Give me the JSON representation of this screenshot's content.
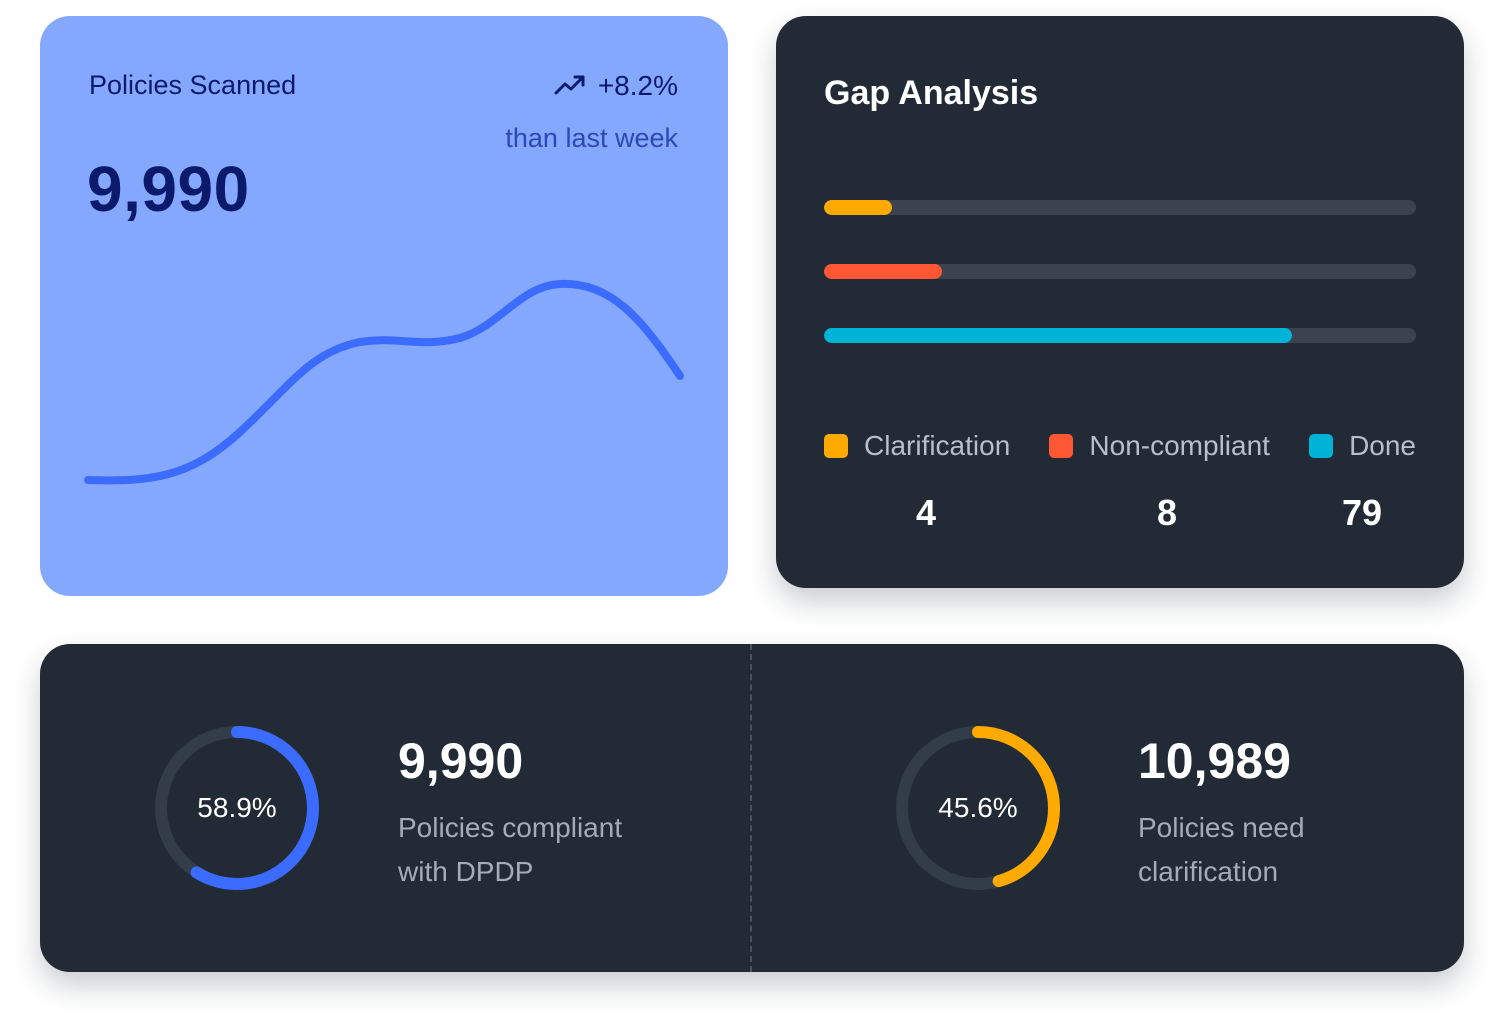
{
  "scanned": {
    "title": "Policies Scanned",
    "value": "9,990",
    "trend_value": "+8.2%",
    "trend_label": "than last week",
    "trend_icon": "trending-up-icon"
  },
  "gap": {
    "title": "Gap Analysis",
    "bars": [
      {
        "name": "Clarification",
        "fraction": 0.115,
        "color": "#ffaa00"
      },
      {
        "name": "Non-compliant",
        "fraction": 0.2,
        "color": "#ff5733"
      },
      {
        "name": "Done",
        "fraction": 0.79,
        "color": "#00b4d8"
      }
    ],
    "legend": [
      {
        "label": "Clarification",
        "count": "4",
        "color": "#ffaa00"
      },
      {
        "label": "Non-compliant",
        "count": "8",
        "color": "#ff5733"
      },
      {
        "label": "Done",
        "count": "79",
        "color": "#00b4d8"
      }
    ]
  },
  "stats": [
    {
      "percent": 58.9,
      "percent_label": "58.9%",
      "value": "9,990",
      "desc_line1": "Policies compliant",
      "desc_line2": "with DPDP",
      "color": "#3b6cff"
    },
    {
      "percent": 45.6,
      "percent_label": "45.6%",
      "value": "10,989",
      "desc_line1": "Policies need",
      "desc_line2": "clarification",
      "color": "#ffaa00"
    }
  ],
  "colors": {
    "accent_blue": "#3b6cff",
    "card_light": "#85a8ff",
    "card_dark": "#212a35"
  }
}
